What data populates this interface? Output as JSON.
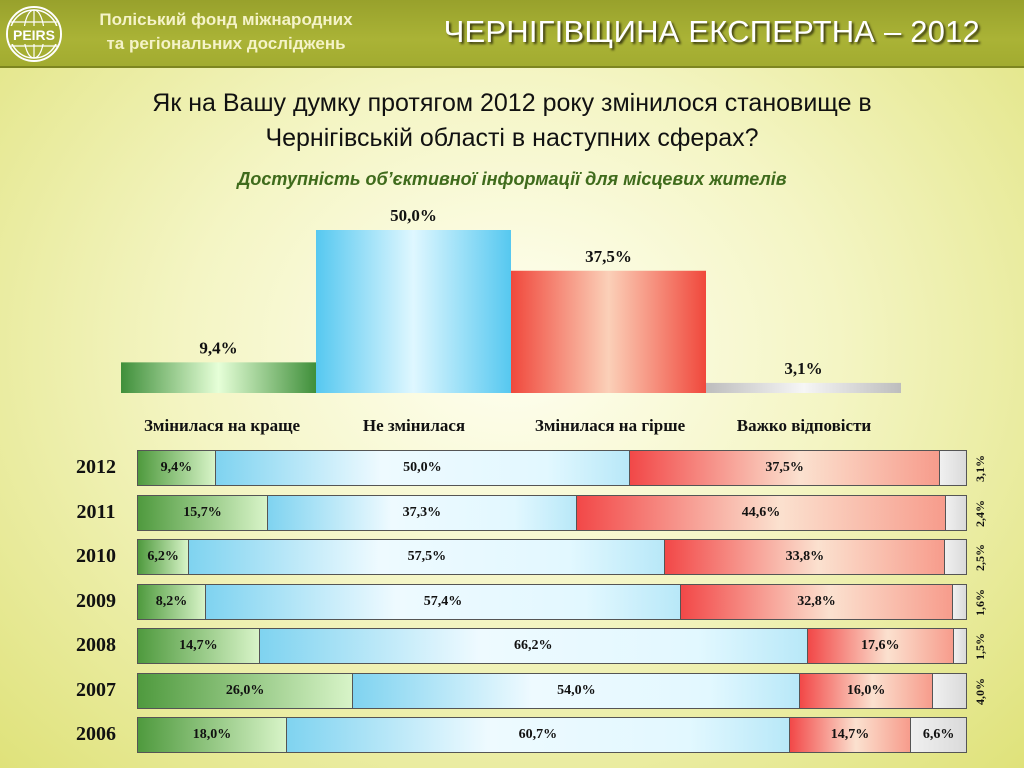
{
  "header": {
    "logo_text": "PEIRS",
    "org_line1": "Поліський фонд міжнародних",
    "org_line2": "та регіональних досліджень",
    "brand": "ЧЕРНІГІВЩИНА ЕКСПЕРТНА – 2012"
  },
  "question_line1": "Як на Вашу думку протягом 2012 року змінилося становище в",
  "question_line2": "Чернігівській області в наступних сферах?",
  "subtitle": "Доступність об’єктивної інформації для місцевих жителів",
  "chart_data": [
    {
      "type": "bar",
      "title": "Доступність об’єктивної інформації для місцевих жителів",
      "categories": [
        "Змінилася на краще",
        "Не змінилася",
        "Змінилася на гірше",
        "Важко відповісти"
      ],
      "values": [
        9.4,
        50.0,
        37.5,
        3.1
      ],
      "value_labels": [
        "9,4%",
        "50,0%",
        "37,5%",
        "3,1%"
      ],
      "ylim": [
        0,
        50
      ],
      "colors": [
        "#3f8f3a",
        "#56c8f0",
        "#f0483c",
        "#b9b9b9"
      ],
      "grid": false
    },
    {
      "type": "bar",
      "orientation": "horizontal-stacked-100",
      "categories": [
        "2012",
        "2011",
        "2010",
        "2009",
        "2008",
        "2007",
        "2006"
      ],
      "series": [
        {
          "name": "Змінилася на краще",
          "values": [
            9.4,
            15.7,
            6.2,
            8.2,
            14.7,
            26.0,
            18.0
          ],
          "labels": [
            "9,4%",
            "15,7%",
            "6,2%",
            "8,2%",
            "14,7%",
            "26,0%",
            "18,0%"
          ]
        },
        {
          "name": "Не змінилася",
          "values": [
            50.0,
            37.3,
            57.5,
            57.4,
            66.2,
            54.0,
            60.7
          ],
          "labels": [
            "50,0%",
            "37,3%",
            "57,5%",
            "57,4%",
            "66,2%",
            "54,0%",
            "60,7%"
          ]
        },
        {
          "name": "Змінилася на гірше",
          "values": [
            37.5,
            44.6,
            33.8,
            32.8,
            17.6,
            16.0,
            14.7
          ],
          "labels": [
            "37,5%",
            "44,6%",
            "33,8%",
            "32,8%",
            "17,6%",
            "16,0%",
            "14,7%"
          ]
        },
        {
          "name": "Важко відповісти",
          "values": [
            3.1,
            2.4,
            2.5,
            1.6,
            1.5,
            4.0,
            6.6
          ],
          "labels": [
            "3,1%",
            "2,4%",
            "2,5%",
            "1,6%",
            "1,5%",
            "4,0%",
            "6,6%"
          ]
        }
      ]
    }
  ]
}
